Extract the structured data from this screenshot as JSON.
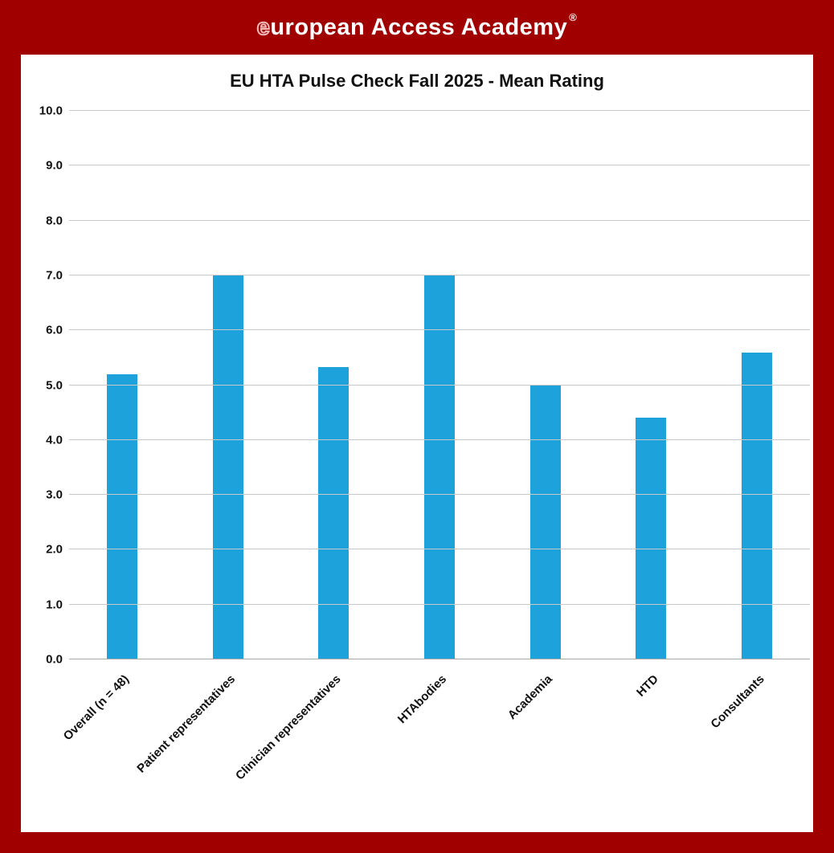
{
  "header": {
    "logo_first_letter": "e",
    "logo_rest": "uropean Access Academy",
    "registered_mark": "®"
  },
  "colors": {
    "frame": "#A00000",
    "panel": "#FFFFFF",
    "bar": "#1EA2DB",
    "header_text": "#FFFFFF",
    "gridline": "#C9C9C9"
  },
  "chart_data": {
    "type": "bar",
    "title": "EU HTA Pulse Check Fall 2025 - Mean Rating",
    "categories": [
      "Overall (n = 48)",
      "Patient representatives",
      "Clinician representatives",
      "HTAbodies",
      "Academia",
      "HTD",
      "Consultants"
    ],
    "values": [
      5.2,
      7.0,
      5.33,
      7.0,
      5.0,
      4.4,
      5.6
    ],
    "xlabel": "",
    "ylabel": "",
    "ylim": [
      0,
      10
    ],
    "ytick_step": 1.0,
    "ytick_labels": [
      "0.0",
      "1.0",
      "2.0",
      "3.0",
      "4.0",
      "5.0",
      "6.0",
      "7.0",
      "8.0",
      "9.0",
      "10.0"
    ],
    "grid": true,
    "legend": false,
    "bar_color": "#1EA2DB"
  }
}
